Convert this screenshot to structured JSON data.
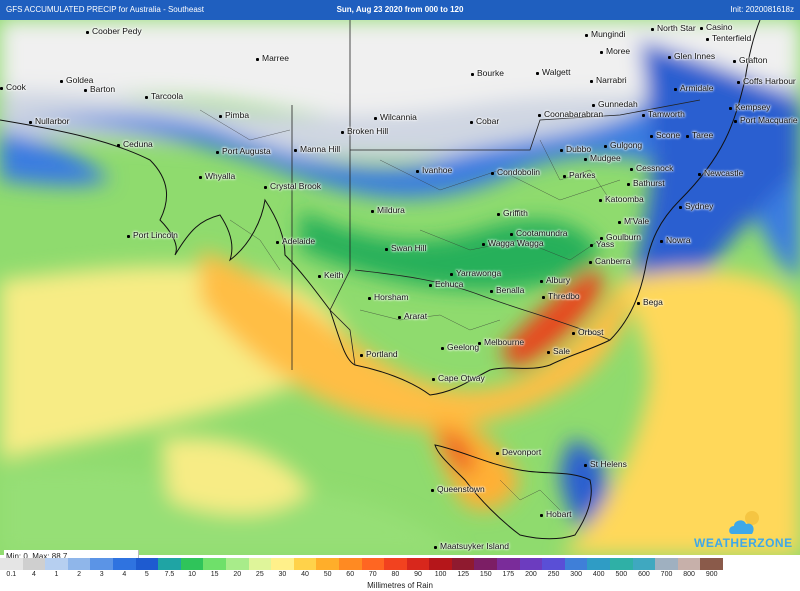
{
  "header": {
    "left_title": "GFS ACCUMULATED PRECIP for Australia - Southeast",
    "center_title": "Sun, Aug 23 2020 from 000 to 120",
    "right_title": "Init: 2020081618z"
  },
  "stats": {
    "minmax": "Min: 0, Max: 88.7"
  },
  "legend": {
    "unit_label": "Millimetres of Rain",
    "ticks": [
      "0.1",
      "4",
      "1",
      "2",
      "3",
      "4",
      "5",
      "7.5",
      "10",
      "15",
      "20",
      "25",
      "30",
      "40",
      "50",
      "60",
      "70",
      "80",
      "90",
      "100",
      "125",
      "150",
      "175",
      "200",
      "250",
      "300",
      "400",
      "500",
      "600",
      "700",
      "800",
      "900"
    ],
    "colors": [
      "#e5e5e5",
      "#cfcfcf",
      "#b6cff0",
      "#8fb6ea",
      "#5b94e6",
      "#2f73e0",
      "#1e5bd0",
      "#1fa4a4",
      "#2fc45a",
      "#6fe06a",
      "#a8ec8a",
      "#dff59a",
      "#fff08a",
      "#ffd24a",
      "#ffae2a",
      "#ff8a22",
      "#ff6622",
      "#f2421f",
      "#d8271c",
      "#b5161a",
      "#8f1a2f",
      "#7c1e65",
      "#7a2c9a",
      "#6c3cbf",
      "#5a4fd6",
      "#3f7fd8",
      "#2f9cc5",
      "#2fb0a6",
      "#3fa8c0",
      "#9fb0c0",
      "#c7b0aa",
      "#8a5a4a"
    ]
  },
  "map": {
    "places": [
      "Coober Pedy",
      "Marree",
      "Goldea",
      "Cook",
      "Barton",
      "Tarcoola",
      "Nullarbor",
      "Pimba",
      "Ceduna",
      "Port Augusta",
      "Manna Hill",
      "Whyalla",
      "Crystal Brook",
      "Port Lincoln",
      "Adelaide",
      "Keith",
      "Horsham",
      "Ararat",
      "Portland",
      "Cape Otway",
      "Geelong",
      "Melbourne",
      "Sale",
      "Orbost",
      "Thredbo",
      "Albury",
      "Benalla",
      "Yarrawonga",
      "Echuca",
      "Swan Hill",
      "Mildura",
      "Ivanhoe",
      "Wilcannia",
      "Broken Hill",
      "Cobar",
      "Bourke",
      "Walgett",
      "Moree",
      "Narrabri",
      "Gunnedah",
      "Coonabarabran",
      "Tamworth",
      "Armidale",
      "Glen Innes",
      "Grafton",
      "Coffs Harbour",
      "Kempsey",
      "Port Macquarie",
      "Taree",
      "Scone",
      "Cessnock",
      "Newcastle",
      "Sydney",
      "Nowra",
      "Bega",
      "Canberra",
      "Goulburn",
      "Yass",
      "Cootamundra",
      "Wagga Wagga",
      "Griffith",
      "Condobolin",
      "Parkes",
      "Dubbo",
      "Mudgee",
      "Gulgong",
      "Bathurst",
      "Katoomba",
      "M'Vale",
      "Devonport",
      "St Helens",
      "Queenstown",
      "Hobart",
      "Maatsuyker Island",
      "Casino",
      "Tenterfield",
      "North Star",
      "Mungindi"
    ]
  },
  "brand": {
    "name": "WEATHERZONE",
    "accent": "#3fa8e8"
  }
}
